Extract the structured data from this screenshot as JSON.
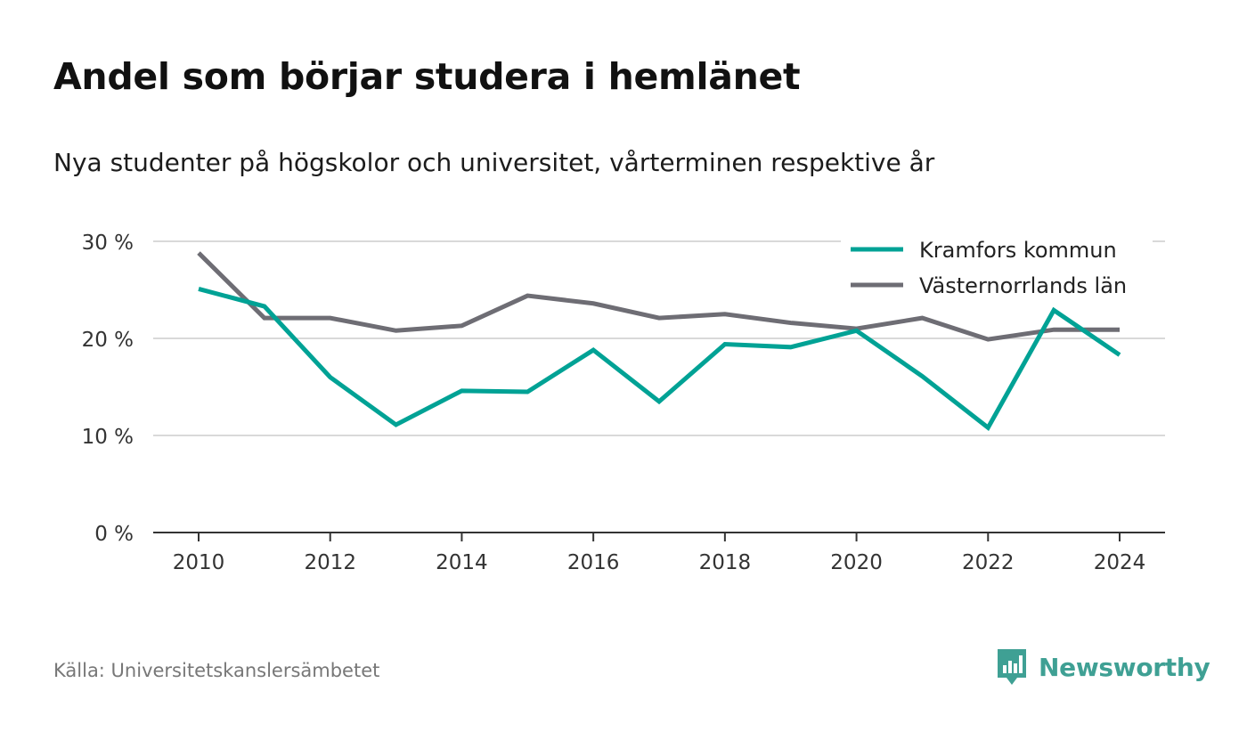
{
  "header": {
    "title": "Andel som börjar studera i hemlänet",
    "subtitle": "Nya studenter på högskolor och universitet, vårterminen respektive år"
  },
  "footer": {
    "source": "Källa: Universitetskanslersämbetet",
    "brand": "Newsworthy"
  },
  "colors": {
    "kramfors": "#00a295",
    "vasternorrland": "#6e6d74",
    "grid": "#d9d9d9",
    "axis": "#333333",
    "brand": "#3fa094"
  },
  "chart_data": {
    "type": "line",
    "x": [
      2010,
      2011,
      2012,
      2013,
      2014,
      2015,
      2016,
      2017,
      2018,
      2019,
      2020,
      2021,
      2022,
      2023,
      2024
    ],
    "x_ticks": [
      2010,
      2012,
      2014,
      2016,
      2018,
      2020,
      2022,
      2024
    ],
    "y_ticks": [
      0,
      10,
      20,
      30
    ],
    "y_tick_labels": [
      "0 %",
      "10 %",
      "20 %",
      "30 %"
    ],
    "ylim": [
      0,
      30
    ],
    "grid": true,
    "legend_position": "top-right",
    "series": [
      {
        "name": "Kramfors kommun",
        "color": "#00a295",
        "values": [
          25.1,
          23.3,
          16.0,
          11.1,
          14.6,
          14.5,
          18.8,
          13.5,
          19.4,
          19.1,
          20.8,
          16.1,
          10.8,
          22.9,
          18.3
        ]
      },
      {
        "name": "Västernorrlands län",
        "color": "#6e6d74",
        "values": [
          28.8,
          22.1,
          22.1,
          20.8,
          21.3,
          24.4,
          23.6,
          22.1,
          22.5,
          21.6,
          21.0,
          22.1,
          19.9,
          20.9,
          20.9
        ]
      }
    ]
  }
}
